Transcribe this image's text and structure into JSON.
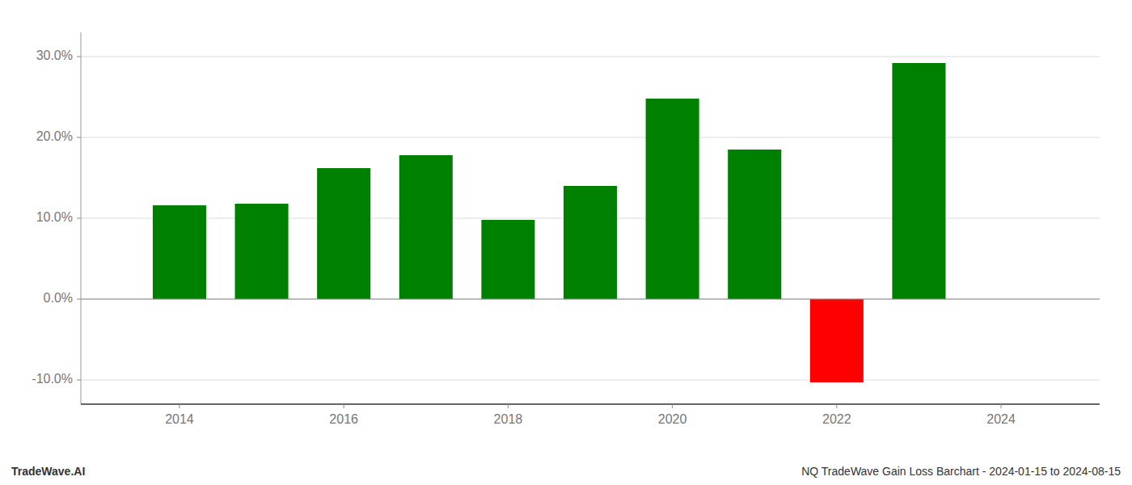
{
  "chart_data": {
    "type": "bar",
    "x": [
      2014,
      2015,
      2016,
      2017,
      2018,
      2019,
      2020,
      2021,
      2022,
      2023
    ],
    "values": [
      0.116,
      0.118,
      0.162,
      0.178,
      0.098,
      0.14,
      0.248,
      0.185,
      -0.103,
      0.292
    ],
    "colors": [
      "#008000",
      "#008000",
      "#008000",
      "#008000",
      "#008000",
      "#008000",
      "#008000",
      "#008000",
      "#ff0000",
      "#008000"
    ],
    "ylim": [
      -0.13,
      0.33
    ],
    "yticks": [
      {
        "value": -0.1,
        "label": "-10.0%"
      },
      {
        "value": 0.0,
        "label": "0.0%"
      },
      {
        "value": 0.1,
        "label": "10.0%"
      },
      {
        "value": 0.2,
        "label": "20.0%"
      },
      {
        "value": 0.3,
        "label": "30.0%"
      }
    ],
    "xlim": [
      2012.8,
      2025.2
    ],
    "xticks": [
      2014,
      2016,
      2018,
      2020,
      2022,
      2024
    ],
    "grid": true,
    "annotations": [
      "TradeWave.AI",
      "NQ TradeWave Gain Loss Barchart - 2024-01-15 to 2024-08-15"
    ]
  }
}
